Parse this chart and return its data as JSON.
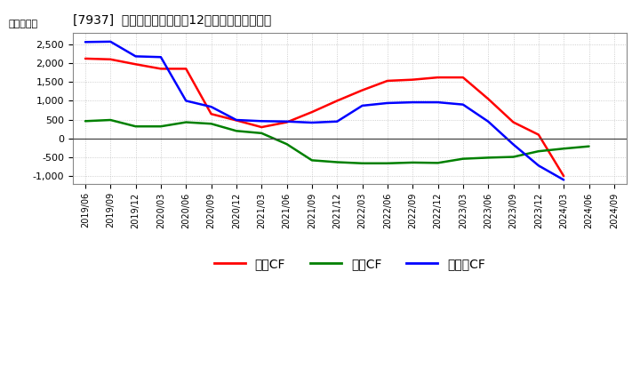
{
  "title": "[7937]  キャッシュフローの12か月移動合計の推移",
  "ylabel": "（百万円）",
  "ylim": [
    -1200,
    2800
  ],
  "yticks": [
    -1000,
    -500,
    0,
    500,
    1000,
    1500,
    2000,
    2500
  ],
  "background_color": "#ffffff",
  "plot_bg_color": "#ffffff",
  "grid_color": "#aaaaaa",
  "x_labels": [
    "2019/06",
    "2019/09",
    "2019/12",
    "2020/03",
    "2020/06",
    "2020/09",
    "2020/12",
    "2021/03",
    "2021/06",
    "2021/09",
    "2021/12",
    "2022/03",
    "2022/06",
    "2022/09",
    "2022/12",
    "2023/03",
    "2023/06",
    "2023/09",
    "2023/12",
    "2024/03",
    "2024/06",
    "2024/09"
  ],
  "series": {
    "営業CF": {
      "color": "#ff0000",
      "values": [
        2120,
        2100,
        1970,
        1850,
        1850,
        650,
        480,
        300,
        430,
        700,
        1000,
        1280,
        1530,
        1560,
        1620,
        1620,
        1050,
        430,
        100,
        -1000,
        null,
        null
      ]
    },
    "投資CF": {
      "color": "#008000",
      "values": [
        460,
        490,
        320,
        320,
        430,
        390,
        200,
        140,
        -150,
        -580,
        -630,
        -660,
        -660,
        -640,
        -650,
        -540,
        -510,
        -490,
        -340,
        -270,
        -210,
        null
      ]
    },
    "フリーCF": {
      "color": "#0000ff",
      "values": [
        2560,
        2570,
        2180,
        2160,
        1000,
        840,
        490,
        460,
        450,
        420,
        450,
        870,
        940,
        960,
        960,
        900,
        450,
        -160,
        -720,
        -1100,
        null,
        null
      ]
    }
  },
  "legend_labels": [
    "営業CF",
    "投資CF",
    "フリーCF"
  ],
  "legend_colors": [
    "#ff0000",
    "#008000",
    "#0000ff"
  ]
}
